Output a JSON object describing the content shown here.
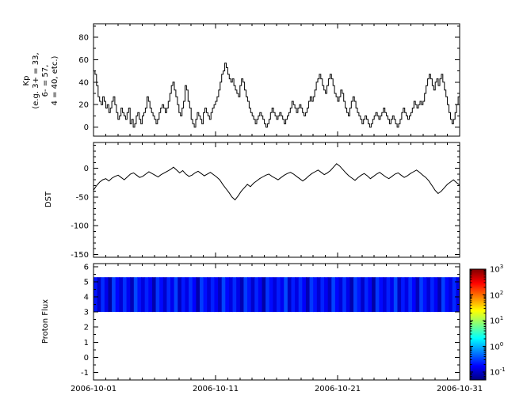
{
  "figure": {
    "background": "#ffffff",
    "line_color": "#000000",
    "x_tick_labels": [
      "2006-10-01",
      "2006-10-11",
      "2006-10-21",
      "2006-10-31"
    ]
  },
  "chart_data": [
    {
      "name": "kp",
      "type": "line",
      "step": true,
      "title": "",
      "ylabel": "Kp\n(e.g. 3+ = 33,\n6- = 57,\n4 = 40, etc.)",
      "x_range": [
        "2006-10-01",
        "2006-10-31"
      ],
      "x_major_tick_days": [
        0,
        10,
        20,
        30
      ],
      "x_minor_tick_step_days": 1,
      "ylim": [
        -8,
        92
      ],
      "yticks": [
        0,
        20,
        40,
        60,
        80
      ],
      "yminor_step": 10,
      "values_per_day": 8,
      "values": [
        50,
        47,
        37,
        27,
        23,
        20,
        27,
        23,
        17,
        20,
        13,
        17,
        23,
        27,
        20,
        13,
        7,
        10,
        17,
        13,
        10,
        7,
        13,
        17,
        3,
        7,
        0,
        3,
        10,
        13,
        7,
        3,
        10,
        13,
        17,
        27,
        23,
        17,
        13,
        10,
        7,
        3,
        7,
        13,
        17,
        20,
        17,
        13,
        17,
        23,
        30,
        37,
        40,
        33,
        27,
        20,
        13,
        10,
        17,
        23,
        37,
        33,
        23,
        17,
        7,
        3,
        0,
        7,
        13,
        10,
        7,
        3,
        13,
        17,
        13,
        10,
        7,
        13,
        17,
        20,
        23,
        27,
        33,
        40,
        47,
        50,
        57,
        53,
        47,
        43,
        40,
        43,
        37,
        33,
        30,
        27,
        37,
        43,
        40,
        33,
        27,
        23,
        17,
        13,
        10,
        7,
        3,
        7,
        10,
        13,
        10,
        7,
        3,
        0,
        3,
        7,
        13,
        17,
        13,
        10,
        7,
        10,
        13,
        10,
        7,
        3,
        7,
        10,
        13,
        17,
        23,
        20,
        17,
        13,
        17,
        20,
        17,
        13,
        10,
        13,
        17,
        23,
        27,
        23,
        27,
        33,
        40,
        43,
        47,
        43,
        37,
        33,
        30,
        37,
        43,
        47,
        43,
        37,
        30,
        27,
        23,
        27,
        33,
        30,
        23,
        17,
        13,
        10,
        17,
        23,
        27,
        23,
        17,
        13,
        10,
        7,
        3,
        7,
        10,
        7,
        3,
        0,
        3,
        7,
        10,
        13,
        10,
        7,
        10,
        13,
        17,
        13,
        10,
        7,
        3,
        7,
        10,
        7,
        3,
        0,
        3,
        7,
        13,
        17,
        13,
        10,
        7,
        10,
        13,
        17,
        23,
        20,
        17,
        20,
        23,
        20,
        23,
        30,
        37,
        43,
        47,
        43,
        37,
        33,
        40,
        43,
        37,
        43,
        47,
        40,
        33,
        27,
        20,
        13,
        7,
        3,
        7,
        13,
        20,
        27
      ]
    },
    {
      "name": "dst",
      "type": "line",
      "step": false,
      "title": "",
      "ylabel": "DST",
      "x_range": [
        "2006-10-01",
        "2006-10-31"
      ],
      "ylim": [
        -155,
        45
      ],
      "yticks": [
        0,
        -50,
        -100,
        -150
      ],
      "yminor_step": 10,
      "values_per_day": 4,
      "values": [
        -38,
        -30,
        -24,
        -20,
        -18,
        -22,
        -17,
        -14,
        -12,
        -16,
        -20,
        -15,
        -10,
        -8,
        -12,
        -16,
        -14,
        -10,
        -6,
        -9,
        -12,
        -15,
        -11,
        -8,
        -5,
        -2,
        2,
        -3,
        -8,
        -4,
        -10,
        -14,
        -12,
        -8,
        -5,
        -9,
        -13,
        -10,
        -7,
        -11,
        -15,
        -20,
        -28,
        -35,
        -42,
        -50,
        -55,
        -48,
        -40,
        -34,
        -28,
        -32,
        -26,
        -22,
        -18,
        -15,
        -12,
        -10,
        -14,
        -17,
        -20,
        -16,
        -12,
        -9,
        -7,
        -10,
        -14,
        -18,
        -22,
        -18,
        -13,
        -9,
        -6,
        -3,
        -7,
        -11,
        -8,
        -4,
        2,
        8,
        4,
        -2,
        -8,
        -13,
        -17,
        -21,
        -16,
        -12,
        -9,
        -13,
        -18,
        -14,
        -10,
        -7,
        -11,
        -15,
        -18,
        -14,
        -10,
        -8,
        -12,
        -16,
        -13,
        -9,
        -6,
        -3,
        -7,
        -12,
        -16,
        -22,
        -30,
        -38,
        -44,
        -40,
        -34,
        -28,
        -24,
        -20,
        -25,
        -29
      ]
    },
    {
      "name": "proton_flux",
      "type": "heatmap",
      "title": "",
      "ylabel": "Proton Flux",
      "x_range": [
        "2006-10-01",
        "2006-10-31"
      ],
      "ylim": [
        -1.5,
        6.2
      ],
      "yticks": [
        6,
        5,
        4,
        3,
        2,
        1,
        0,
        -1
      ],
      "yminor_step": 0.5,
      "band_y": [
        3.0,
        5.3
      ],
      "log_flux_columns": [
        -0.42,
        -0.71,
        -0.33,
        -0.58,
        -0.86,
        -0.25,
        -0.49,
        -0.67,
        -0.31,
        -0.55,
        -0.78,
        -0.22,
        -0.44,
        -0.63,
        -0.37,
        -0.52,
        -0.81,
        -0.29,
        -0.47,
        -0.69,
        -0.35,
        -0.57,
        -0.24,
        -0.74,
        -0.41,
        -0.6,
        -0.32,
        -0.5,
        -0.83,
        -0.27,
        -0.45,
        -0.66,
        -0.38,
        -0.54,
        -0.76,
        -0.23,
        -0.48,
        -0.62,
        -0.34,
        -0.59,
        -0.8,
        -0.26,
        -0.43,
        -0.7,
        -0.36,
        -0.53,
        -0.84,
        -0.3,
        -0.46,
        -0.64,
        -0.39,
        -0.56,
        -0.21,
        -0.72,
        -0.4,
        -0.61,
        -0.33,
        -0.51,
        -0.79,
        -0.28,
        -0.44,
        -0.68,
        -0.37,
        -0.55,
        -0.75,
        -0.24,
        -0.49,
        -0.65,
        -0.31,
        -0.58,
        -0.82,
        -0.27,
        -0.42,
        -0.71,
        -0.35,
        -0.52,
        -0.85,
        -0.29,
        -0.47,
        -0.63,
        -0.38,
        -0.57,
        -0.22,
        -0.73,
        -0.41,
        -0.6,
        -0.32,
        -0.5,
        -0.77,
        -0.26,
        -0.45,
        -0.67,
        -0.36,
        -0.54,
        -0.8,
        -0.25,
        -0.48,
        -0.62,
        -0.34,
        -0.59
      ],
      "colorbar": {
        "scale": "log",
        "colormap": "jet",
        "min_exponent": -1,
        "max_exponent": 3,
        "tick_exponents": [
          3,
          2,
          1,
          0,
          -1
        ]
      }
    }
  ]
}
